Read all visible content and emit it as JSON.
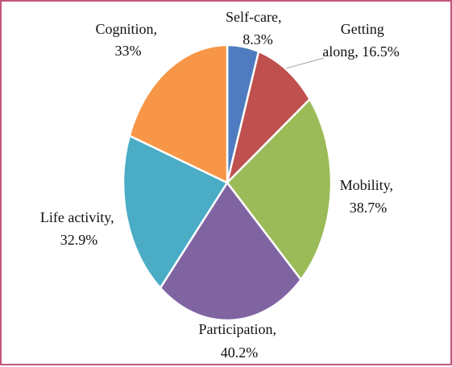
{
  "chart_data": {
    "type": "pie",
    "title": "",
    "slices": [
      {
        "name": "Self-care",
        "value": 8.3,
        "display": "8.3%",
        "color": "#4f7cc0"
      },
      {
        "name": "Getting along",
        "value": 16.5,
        "display": "16.5%",
        "color": "#c0504d"
      },
      {
        "name": "Mobility",
        "value": 38.7,
        "display": "38.7%",
        "color": "#9bbb59"
      },
      {
        "name": "Participation",
        "value": 40.2,
        "display": "40.2%",
        "color": "#8064a2"
      },
      {
        "name": "Life activity",
        "value": 32.9,
        "display": "32.9%",
        "color": "#4bacc6"
      },
      {
        "name": "Cognition",
        "value": 33,
        "display": "33%",
        "color": "#f79646"
      }
    ],
    "labels": [
      {
        "line1": "Self-care,",
        "line2": "8.3%"
      },
      {
        "line1": "Getting",
        "line2": "along, 16.5%"
      },
      {
        "line1": "Mobility,",
        "line2": "38.7%"
      },
      {
        "line1": "Participation,",
        "line2": "40.2%"
      },
      {
        "line1": "Life activity,",
        "line2": "32.9%"
      },
      {
        "line1": "Cognition,",
        "line2": "33%"
      }
    ],
    "border_color": "#c2577a"
  }
}
